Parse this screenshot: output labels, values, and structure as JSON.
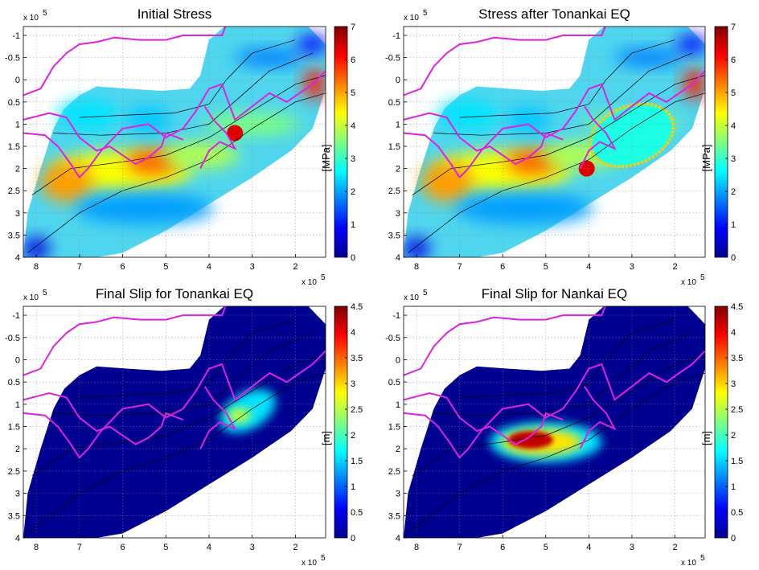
{
  "chart_data": [
    {
      "type": "heatmap",
      "title": "Initial Stress",
      "xlabel": "",
      "ylabel": "",
      "x_exponent": "x 10",
      "y_exponent": "x 10",
      "exponent_power": "5",
      "xlim": [
        8.3,
        1.3
      ],
      "ylim": [
        -1.2,
        4
      ],
      "x_ticks": [
        "8",
        "7",
        "6",
        "5",
        "4",
        "3",
        "2"
      ],
      "y_ticks": [
        "-1",
        "-0.5",
        "0",
        "0.5",
        "1",
        "1.5",
        "2",
        "2.5",
        "3",
        "3.5",
        "4"
      ],
      "grid": true,
      "colorbar": {
        "label": "[MPa]",
        "range": [
          0,
          7
        ],
        "ticks": [
          "0",
          "1",
          "2",
          "3",
          "4",
          "5",
          "6",
          "7"
        ]
      },
      "features": [
        "high stress band along x≈7–4.5, y≈1.8–2.4 (~4–5 MPa)",
        "stress concentration patch near x≈3.4, y≈1.2 (~7 MPa)",
        "high stress near x≈1.5, y≈0 (~7 MPa)"
      ]
    },
    {
      "type": "heatmap",
      "title": "Stress after Tonankai EQ",
      "xlabel": "",
      "ylabel": "",
      "x_exponent": "x 10",
      "y_exponent": "x 10",
      "exponent_power": "5",
      "xlim": [
        8.3,
        1.3
      ],
      "ylim": [
        -1.2,
        4
      ],
      "x_ticks": [
        "8",
        "7",
        "6",
        "5",
        "4",
        "3",
        "2"
      ],
      "y_ticks": [
        "-1",
        "-0.5",
        "0",
        "0.5",
        "1",
        "1.5",
        "2",
        "2.5",
        "3",
        "3.5",
        "4"
      ],
      "grid": true,
      "colorbar": {
        "label": "[MPa]",
        "range": [
          0,
          7
        ],
        "ticks": [
          "0",
          "1",
          "2",
          "3",
          "4",
          "5",
          "6",
          "7"
        ]
      },
      "features": [
        "stress drop region outlined by high-stress ring x≈4–2, y≈0.6–2",
        "concentration patch near x≈4.05, y≈2 (~7 MPa)"
      ]
    },
    {
      "type": "heatmap",
      "title": "Final Slip for Tonankai EQ",
      "xlabel": "",
      "ylabel": "",
      "x_exponent": "x 10",
      "y_exponent": "x 10",
      "exponent_power": "5",
      "xlim": [
        8.3,
        1.3
      ],
      "ylim": [
        -1.2,
        4
      ],
      "x_ticks": [
        "8",
        "7",
        "6",
        "5",
        "4",
        "3",
        "2"
      ],
      "y_ticks": [
        "-1",
        "-0.5",
        "0",
        "0.5",
        "1",
        "1.5",
        "2",
        "2.5",
        "3",
        "3.5",
        "4"
      ],
      "grid": true,
      "colorbar": {
        "label": "[m]",
        "range": [
          0,
          4.5
        ],
        "ticks": [
          "0",
          "0.5",
          "1",
          "1.5",
          "2",
          "2.5",
          "3",
          "3.5",
          "4",
          "4.5"
        ]
      },
      "features": [
        "slip patch x≈3.8–2.4, y≈0.7–1.6, peak ~2.5 m"
      ]
    },
    {
      "type": "heatmap",
      "title": "Final Slip for Nankai EQ",
      "xlabel": "",
      "ylabel": "",
      "x_exponent": "x 10",
      "y_exponent": "x 10",
      "exponent_power": "5",
      "xlim": [
        8.3,
        1.3
      ],
      "ylim": [
        -1.2,
        4
      ],
      "x_ticks": [
        "8",
        "7",
        "6",
        "5",
        "4",
        "3",
        "2"
      ],
      "y_ticks": [
        "-1",
        "-0.5",
        "0",
        "0.5",
        "1",
        "1.5",
        "2",
        "2.5",
        "3",
        "3.5",
        "4"
      ],
      "grid": true,
      "colorbar": {
        "label": "[m]",
        "range": [
          0,
          4.5
        ],
        "ticks": [
          "0",
          "0.5",
          "1",
          "1.5",
          "2",
          "2.5",
          "3",
          "3.5",
          "4",
          "4.5"
        ]
      },
      "features": [
        "slip patch x≈6.4–3.8, y≈1.4–2.3, peak ~4.5 m near x≈5.3, y≈1.8"
      ]
    }
  ]
}
